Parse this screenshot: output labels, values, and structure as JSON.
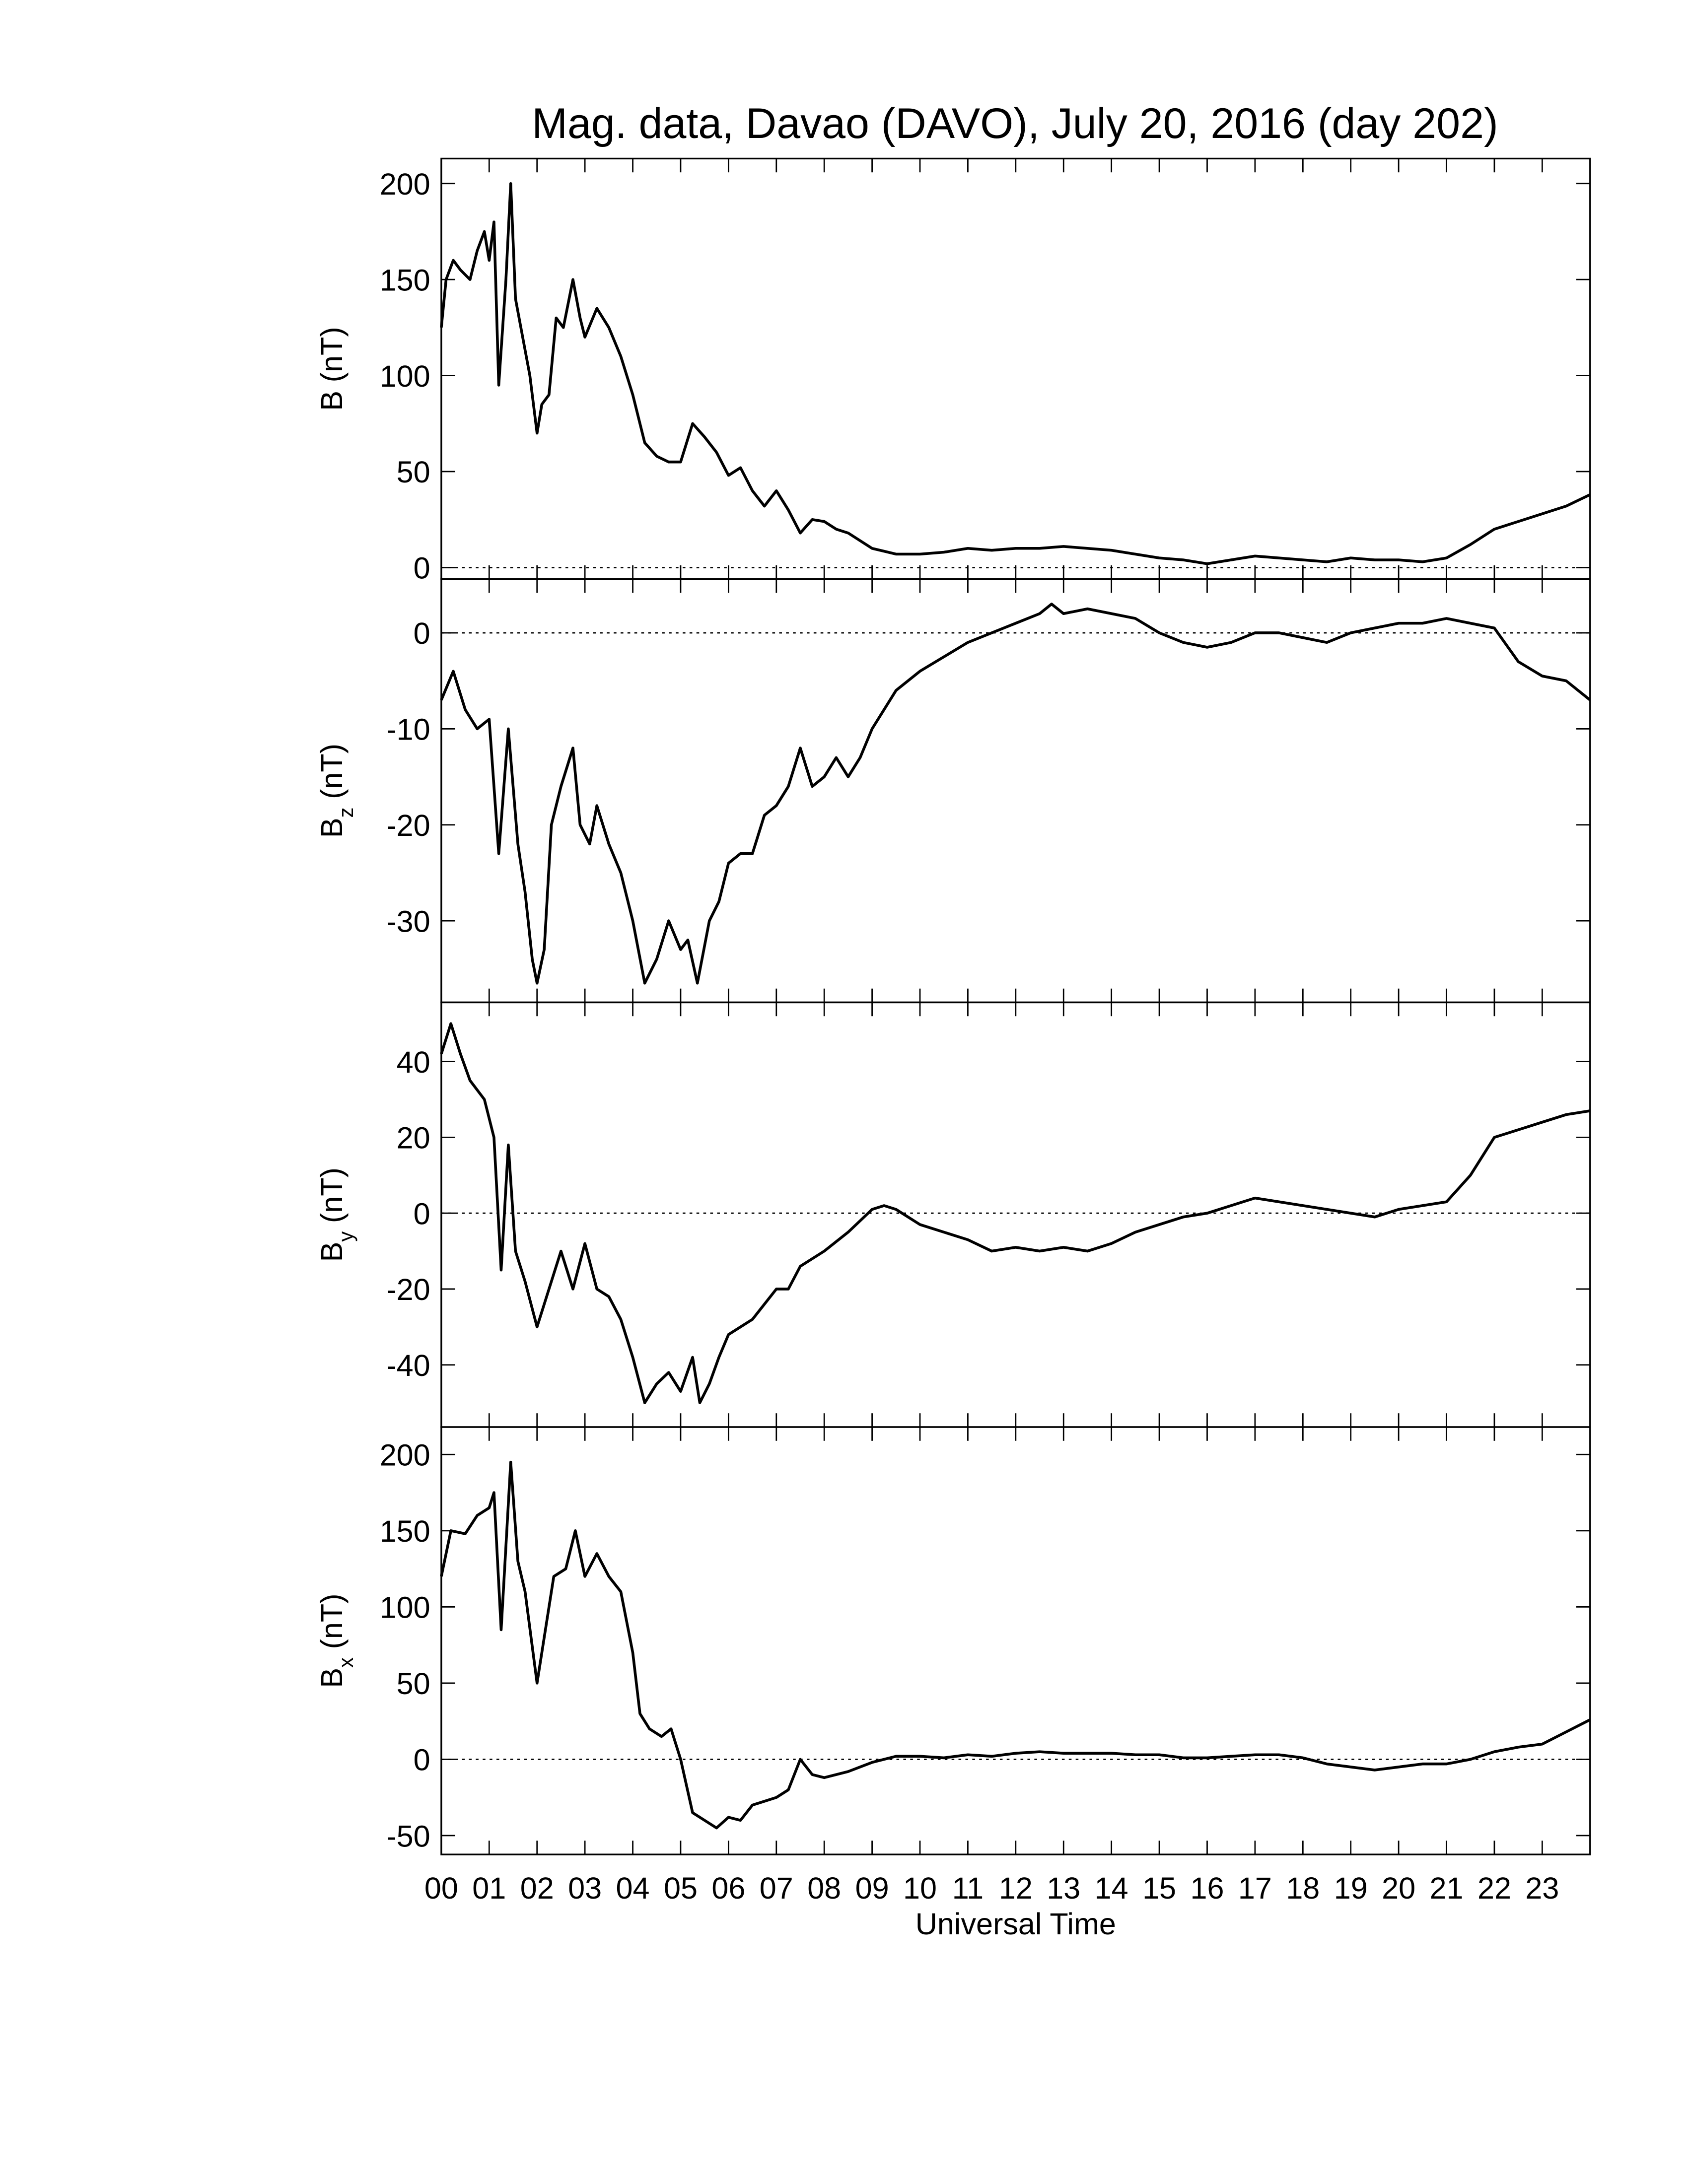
{
  "chart_data": [
    {
      "type": "line",
      "title": "Mag. data, Davao (DAVO), July 20, 2016 (day 202)",
      "ylabel": "B",
      "ylabel_unit": "(nT)",
      "color": "#000000",
      "hline": 0,
      "xlim": [
        0,
        24
      ],
      "ylim": [
        -6,
        213
      ],
      "yticks": [
        0,
        50,
        100,
        150,
        200
      ],
      "x": [
        0,
        0.1,
        0.25,
        0.4,
        0.6,
        0.75,
        0.9,
        1.0,
        1.1,
        1.2,
        1.35,
        1.45,
        1.55,
        1.7,
        1.85,
        2.0,
        2.1,
        2.25,
        2.4,
        2.55,
        2.75,
        2.9,
        3.0,
        3.25,
        3.5,
        3.75,
        4.0,
        4.25,
        4.5,
        4.75,
        5.0,
        5.25,
        5.5,
        5.75,
        6.0,
        6.25,
        6.5,
        6.75,
        7.0,
        7.25,
        7.5,
        7.75,
        8.0,
        8.25,
        8.5,
        9.0,
        9.5,
        10,
        10.5,
        11,
        11.5,
        12,
        12.5,
        13,
        13.5,
        14,
        14.5,
        15,
        15.5,
        16,
        16.5,
        17,
        17.5,
        18,
        18.5,
        19,
        19.5,
        20,
        20.5,
        21,
        21.5,
        22,
        22.5,
        23,
        23.5,
        24
      ],
      "values": [
        125,
        150,
        160,
        155,
        150,
        165,
        175,
        160,
        180,
        95,
        150,
        200,
        140,
        120,
        100,
        70,
        85,
        90,
        130,
        125,
        150,
        130,
        120,
        135,
        125,
        110,
        90,
        65,
        58,
        55,
        55,
        75,
        68,
        60,
        48,
        52,
        40,
        32,
        40,
        30,
        18,
        25,
        24,
        20,
        18,
        10,
        7,
        7,
        8,
        10,
        9,
        10,
        10,
        11,
        10,
        9,
        7,
        5,
        4,
        2,
        4,
        6,
        5,
        4,
        3,
        5,
        4,
        4,
        3,
        5,
        12,
        20,
        24,
        28,
        32,
        38
      ]
    },
    {
      "type": "line",
      "ylabel": "B",
      "ylabel_sub": "z",
      "ylabel_unit": "(nT)",
      "color": "#000000",
      "hline": 0,
      "xlim": [
        0,
        24
      ],
      "ylim": [
        -38.5,
        5.6
      ],
      "yticks": [
        -30,
        -20,
        -10,
        0
      ],
      "x": [
        0,
        0.25,
        0.5,
        0.75,
        1.0,
        1.2,
        1.4,
        1.6,
        1.75,
        1.9,
        2.0,
        2.15,
        2.3,
        2.5,
        2.75,
        2.9,
        3.1,
        3.25,
        3.5,
        3.75,
        4.0,
        4.25,
        4.5,
        4.75,
        5.0,
        5.15,
        5.35,
        5.6,
        5.8,
        6.0,
        6.25,
        6.5,
        6.75,
        7.0,
        7.25,
        7.5,
        7.75,
        8.0,
        8.25,
        8.5,
        8.75,
        9.0,
        9.5,
        10,
        10.5,
        11,
        11.5,
        12,
        12.5,
        12.75,
        13,
        13.5,
        14,
        14.5,
        15,
        15.5,
        16,
        16.5,
        17,
        17.5,
        18,
        18.5,
        19,
        19.5,
        20,
        20.5,
        21,
        21.5,
        22,
        22.5,
        23,
        23.5,
        24
      ],
      "values": [
        -7,
        -4,
        -8,
        -10,
        -9,
        -23,
        -10,
        -22,
        -27,
        -34,
        -36.5,
        -33,
        -20,
        -16,
        -12,
        -20,
        -22,
        -18,
        -22,
        -25,
        -30,
        -36.5,
        -34,
        -30,
        -33,
        -32,
        -36.5,
        -30,
        -28,
        -24,
        -23,
        -23,
        -19,
        -18,
        -16,
        -12,
        -16,
        -15,
        -13,
        -15,
        -13,
        -10,
        -6,
        -4,
        -2.5,
        -1,
        0,
        1,
        2,
        3,
        2,
        2.5,
        2,
        1.5,
        0,
        -1,
        -1.5,
        -1,
        0,
        0,
        -0.5,
        -1,
        0,
        0.5,
        1,
        1,
        1.5,
        1,
        0.5,
        -3,
        -4.5,
        -5,
        -7
      ]
    },
    {
      "type": "line",
      "ylabel": "B",
      "ylabel_sub": "y",
      "ylabel_unit": "(nT)",
      "color": "#000000",
      "hline": 0,
      "xlim": [
        0,
        24
      ],
      "ylim": [
        -56.4,
        55.6
      ],
      "yticks": [
        -40,
        -20,
        0,
        20,
        40
      ],
      "x": [
        0,
        0.2,
        0.4,
        0.6,
        0.9,
        1.1,
        1.25,
        1.4,
        1.55,
        1.75,
        2.0,
        2.25,
        2.5,
        2.75,
        3.0,
        3.25,
        3.5,
        3.75,
        4.0,
        4.25,
        4.5,
        4.75,
        5.0,
        5.25,
        5.4,
        5.6,
        5.8,
        6.0,
        6.5,
        7.0,
        7.25,
        7.5,
        8.0,
        8.5,
        9.0,
        9.25,
        9.5,
        10,
        10.5,
        11,
        11.5,
        12,
        12.5,
        13,
        13.5,
        14,
        14.5,
        15,
        15.5,
        16,
        16.5,
        17,
        17.5,
        18,
        18.5,
        19,
        19.5,
        20,
        20.5,
        21,
        21.5,
        22,
        22.5,
        23,
        23.5,
        24
      ],
      "values": [
        42,
        50,
        42,
        35,
        30,
        20,
        -15,
        18,
        -10,
        -18,
        -30,
        -20,
        -10,
        -20,
        -8,
        -20,
        -22,
        -28,
        -38,
        -50,
        -45,
        -42,
        -47,
        -38,
        -50,
        -45,
        -38,
        -32,
        -28,
        -20,
        -20,
        -14,
        -10,
        -5,
        1,
        2,
        1,
        -3,
        -5,
        -7,
        -10,
        -9,
        -10,
        -9,
        -10,
        -8,
        -5,
        -3,
        -1,
        0,
        2,
        4,
        3,
        2,
        1,
        0,
        -1,
        1,
        2,
        3,
        10,
        20,
        22,
        24,
        26,
        27
      ]
    },
    {
      "type": "line",
      "ylabel": "B",
      "ylabel_sub": "x",
      "ylabel_unit": "(nT)",
      "xlabel": "Universal Time",
      "color": "#000000",
      "hline": 0,
      "xlim": [
        0,
        24
      ],
      "ylim": [
        -62.4,
        218
      ],
      "yticks": [
        -50,
        0,
        50,
        100,
        150,
        200
      ],
      "xticks": [
        {
          "value": 0,
          "label": "00"
        },
        {
          "value": 1,
          "label": "01"
        },
        {
          "value": 2,
          "label": "02"
        },
        {
          "value": 3,
          "label": "03"
        },
        {
          "value": 4,
          "label": "04"
        },
        {
          "value": 5,
          "label": "05"
        },
        {
          "value": 6,
          "label": "06"
        },
        {
          "value": 7,
          "label": "07"
        },
        {
          "value": 8,
          "label": "08"
        },
        {
          "value": 9,
          "label": "09"
        },
        10,
        11,
        12,
        13,
        14,
        15,
        16,
        17,
        18,
        19,
        20,
        21,
        22,
        23
      ],
      "x": [
        0,
        0.2,
        0.5,
        0.75,
        1.0,
        1.1,
        1.25,
        1.45,
        1.6,
        1.75,
        2.0,
        2.15,
        2.35,
        2.6,
        2.8,
        3.0,
        3.25,
        3.5,
        3.75,
        4.0,
        4.15,
        4.35,
        4.6,
        4.8,
        5.0,
        5.25,
        5.5,
        5.75,
        6.0,
        6.25,
        6.5,
        7.0,
        7.25,
        7.5,
        7.75,
        8.0,
        8.5,
        9.0,
        9.5,
        10,
        10.5,
        11,
        11.5,
        12,
        12.5,
        13,
        13.5,
        14,
        14.5,
        15,
        15.5,
        16,
        16.5,
        17,
        17.5,
        18,
        18.5,
        19,
        19.5,
        20,
        20.5,
        21,
        21.5,
        22,
        22.5,
        23,
        23.5,
        24
      ],
      "values": [
        120,
        150,
        148,
        160,
        165,
        175,
        85,
        195,
        130,
        110,
        50,
        80,
        120,
        125,
        150,
        120,
        135,
        120,
        110,
        70,
        30,
        20,
        15,
        20,
        0,
        -35,
        -40,
        -45,
        -38,
        -40,
        -30,
        -25,
        -20,
        0,
        -10,
        -12,
        -8,
        -2,
        2,
        2,
        1,
        3,
        2,
        4,
        5,
        4,
        4,
        4,
        3,
        3,
        1,
        1,
        2,
        3,
        3,
        1,
        -3,
        -5,
        -7,
        -5,
        -3,
        -3,
        0,
        5,
        8,
        10,
        18,
        26
      ]
    }
  ]
}
